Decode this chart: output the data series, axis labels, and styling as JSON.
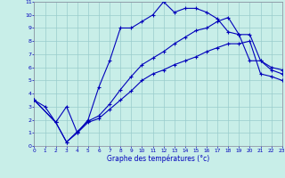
{
  "xlabel": "Graphe des températures (°c)",
  "bg_color": "#c8eee8",
  "line_color": "#0000bb",
  "grid_color": "#99cccc",
  "xlim": [
    0,
    23
  ],
  "ylim": [
    0,
    11
  ],
  "xticks": [
    0,
    1,
    2,
    3,
    4,
    5,
    6,
    7,
    8,
    9,
    10,
    11,
    12,
    13,
    14,
    15,
    16,
    17,
    18,
    19,
    20,
    21,
    22,
    23
  ],
  "yticks": [
    0,
    1,
    2,
    3,
    4,
    5,
    6,
    7,
    8,
    9,
    10,
    11
  ],
  "line1_x": [
    0,
    1,
    2,
    3,
    4,
    5,
    6,
    7,
    8,
    9,
    10,
    11,
    12,
    13,
    14,
    15,
    16,
    17,
    18,
    19,
    20,
    21,
    22,
    23
  ],
  "line1_y": [
    3.5,
    3.0,
    1.8,
    3.0,
    1.0,
    2.0,
    4.5,
    6.5,
    9.0,
    9.0,
    9.5,
    10.0,
    11.0,
    10.2,
    10.5,
    10.5,
    10.2,
    9.7,
    8.7,
    8.5,
    6.5,
    6.5,
    6.0,
    5.8
  ],
  "line2_x": [
    0,
    2,
    3,
    4,
    5,
    6,
    7,
    8,
    9,
    10,
    11,
    12,
    13,
    14,
    15,
    16,
    17,
    18,
    19,
    20,
    21,
    22,
    23
  ],
  "line2_y": [
    3.5,
    1.8,
    0.3,
    1.1,
    1.9,
    2.3,
    3.2,
    4.3,
    5.3,
    6.2,
    6.7,
    7.2,
    7.8,
    8.3,
    8.8,
    9.0,
    9.5,
    9.8,
    8.5,
    8.5,
    6.5,
    5.8,
    5.5
  ],
  "line3_x": [
    0,
    2,
    3,
    4,
    5,
    6,
    7,
    8,
    9,
    10,
    11,
    12,
    13,
    14,
    15,
    16,
    17,
    18,
    19,
    20,
    21,
    22,
    23
  ],
  "line3_y": [
    3.5,
    1.8,
    0.3,
    1.0,
    1.8,
    2.1,
    2.8,
    3.5,
    4.2,
    5.0,
    5.5,
    5.8,
    6.2,
    6.5,
    6.8,
    7.2,
    7.5,
    7.8,
    7.8,
    8.0,
    5.5,
    5.3,
    5.0
  ]
}
